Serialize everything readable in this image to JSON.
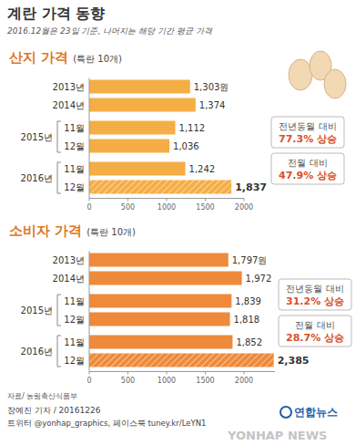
{
  "header": {
    "title": "계란 가격 동향",
    "subtitle": "2016.12월은 23일 기준, 나머지는 해당 기간 평균 가격"
  },
  "chart_data": [
    {
      "type": "bar",
      "orientation": "horizontal",
      "title": "산지 가격",
      "subtitle": "(특란 10개)",
      "categories": [
        "2013년",
        "2014년",
        "11월",
        "12월",
        "11월",
        "12월"
      ],
      "category_groups": [
        null,
        null,
        "2015년",
        "2015년",
        "2016년",
        "2016년"
      ],
      "values": [
        1303,
        1374,
        1112,
        1036,
        1242,
        1837
      ],
      "value_labels": [
        "1,303원",
        "1,374",
        "1,112",
        "1,036",
        "1,242",
        "1,837"
      ],
      "color": "#f5ad45",
      "xlim": [
        0,
        2000
      ],
      "xticks": [
        0,
        500,
        1000,
        1500,
        2000
      ],
      "grid": false,
      "data_labels": true,
      "annotations": [
        {
          "label": "전년동월 대비",
          "change": "77.3% 상승"
        },
        {
          "label": "전월 대비",
          "change": "47.9% 상승"
        }
      ]
    },
    {
      "type": "bar",
      "orientation": "horizontal",
      "title": "소비자 가격",
      "subtitle": "(특란 10개)",
      "categories": [
        "2013년",
        "2014년",
        "11월",
        "12월",
        "11월",
        "12월"
      ],
      "category_groups": [
        null,
        null,
        "2015년",
        "2015년",
        "2016년",
        "2016년"
      ],
      "values": [
        1797,
        1972,
        1839,
        1818,
        1852,
        2385
      ],
      "value_labels": [
        "1,797원",
        "1,972",
        "1,839",
        "1,818",
        "1,852",
        "2,385"
      ],
      "color": "#ee8a3a",
      "xlim": [
        0,
        2400
      ],
      "xticks": [
        0,
        500,
        1000,
        1500,
        2000
      ],
      "grid": false,
      "data_labels": true,
      "annotations": [
        {
          "label": "전년동월 대비",
          "change": "31.2% 상승"
        },
        {
          "label": "전월 대비",
          "change": "28.7% 상승"
        }
      ]
    }
  ],
  "footer": {
    "source": "자료/ 농림축산식품부",
    "credit": "장예진 기자 / 20161226",
    "social": "트위터 @yonhap_graphics, 페이스북 tuney.kr/LeYN1",
    "logo": "연합뉴스",
    "watermark": "YONHAP NEWS"
  }
}
